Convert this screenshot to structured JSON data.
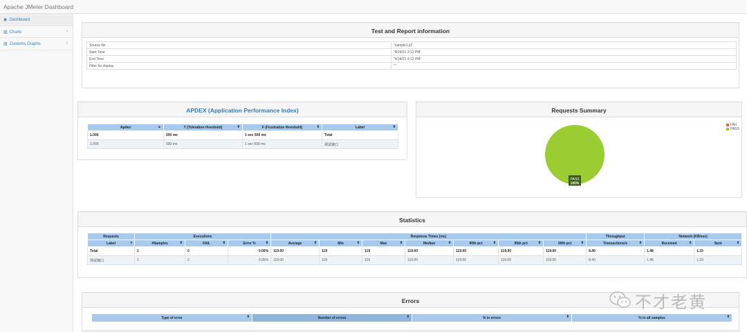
{
  "app": {
    "title": "Apache JMeter Dashboard"
  },
  "sidebar": {
    "items": [
      {
        "label": "Dashboard",
        "icon": "dashboard-icon"
      },
      {
        "label": "Charts",
        "icon": "bar-chart-icon"
      },
      {
        "label": "Customs Graphs",
        "icon": "bar-chart-icon"
      }
    ]
  },
  "test_info": {
    "title": "Test and Report information",
    "rows": [
      {
        "label": "Source file",
        "value": "\"sample1.jtl\""
      },
      {
        "label": "Start Time",
        "value": "\"4/24/21 3:12 PM\""
      },
      {
        "label": "End Time",
        "value": "\"4/24/21 3:12 PM\""
      },
      {
        "label": "Filter for display",
        "value": "\"\""
      }
    ]
  },
  "apdex": {
    "title": "APDEX (Application Performance Index)",
    "headers": [
      "Apdex",
      "T (Toleration threshold)",
      "F (Frustration threshold)",
      "Label"
    ],
    "rows": [
      [
        "1.000",
        "500 ms",
        "1 sec 500 ms",
        "Total"
      ],
      [
        "1.000",
        "500 ms",
        "1 sec 500 ms",
        "测试接口"
      ]
    ]
  },
  "requests_summary": {
    "title": "Requests Summary",
    "legend": [
      {
        "label": "FAIL",
        "color": "#ff5b3b"
      },
      {
        "label": "PASS",
        "color": "#9acd32"
      }
    ],
    "slice_label": "PASS",
    "slice_value": "100%"
  },
  "chart_data": {
    "type": "pie",
    "categories": [
      "FAIL",
      "PASS"
    ],
    "values": [
      0,
      100
    ],
    "title": "Requests Summary"
  },
  "statistics": {
    "title": "Statistics",
    "groups": [
      "Requests",
      "Executions",
      "Response Times (ms)",
      "Throughput",
      "Network (KB/sec)"
    ],
    "headers": [
      "Label",
      "#Samples",
      "FAIL",
      "Error %",
      "Average",
      "Min",
      "Max",
      "Median",
      "90th pct",
      "95th pct",
      "99th pct",
      "Transactions/s",
      "Received",
      "Sent"
    ],
    "rows": [
      [
        "Total",
        "1",
        "0",
        "0.00%",
        "119.00",
        "119",
        "119",
        "119.00",
        "119.00",
        "119.00",
        "119.00",
        "8.40",
        "1.48",
        "1.33"
      ],
      [
        "测试接口",
        "1",
        "0",
        "0.00%",
        "119.00",
        "119",
        "119",
        "119.00",
        "119.00",
        "119.00",
        "119.00",
        "8.40",
        "1.48",
        "1.33"
      ]
    ]
  },
  "errors": {
    "title": "Errors",
    "headers": [
      "Type of error",
      "Number of errors",
      "% in errors",
      "% in all samples"
    ]
  },
  "watermark": {
    "text": "不才老黄"
  }
}
